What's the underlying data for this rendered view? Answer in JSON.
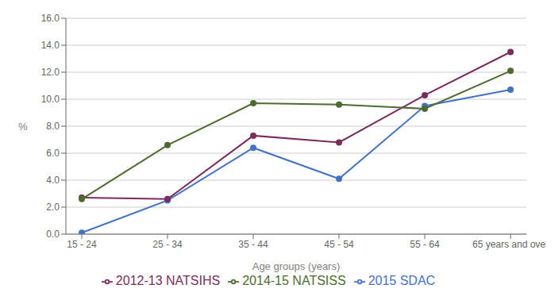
{
  "chart_data": {
    "type": "line",
    "categories": [
      "15 - 24",
      "25 - 34",
      "35 - 44",
      "45 - 54",
      "55 - 64",
      "65 years and over"
    ],
    "series": [
      {
        "name": "2015 SDAC",
        "color": "#4472C4",
        "marker": "circle",
        "values": [
          0.1,
          2.5,
          6.4,
          4.1,
          9.5,
          10.7
        ]
      },
      {
        "name": "2012-13 NATSIHS",
        "color": "#7B2C5E",
        "marker": "circle",
        "values": [
          2.7,
          2.6,
          7.3,
          6.8,
          10.3,
          13.5
        ]
      },
      {
        "name": "2014-15 NATSISS",
        "color": "#4E6B30",
        "marker": "circle",
        "values": [
          2.6,
          6.6,
          9.7,
          9.6,
          9.3,
          12.1
        ]
      }
    ],
    "xlabel": "Age groups (years)",
    "ylabel": "%",
    "ylim": [
      0,
      16
    ],
    "yticks": [
      {
        "value": 0,
        "label": "0.0"
      },
      {
        "value": 2,
        "label": "2.0"
      },
      {
        "value": 4,
        "label": "4.0"
      },
      {
        "value": 6,
        "label": "6.0"
      },
      {
        "value": 8,
        "label": "8.0"
      },
      {
        "value": 10,
        "label": "10.0"
      },
      {
        "value": 12,
        "label": "12.0"
      },
      {
        "value": 14,
        "label": "14.0"
      },
      {
        "value": 16,
        "label": "16.0"
      }
    ],
    "grid": true,
    "legend": "bottom"
  }
}
